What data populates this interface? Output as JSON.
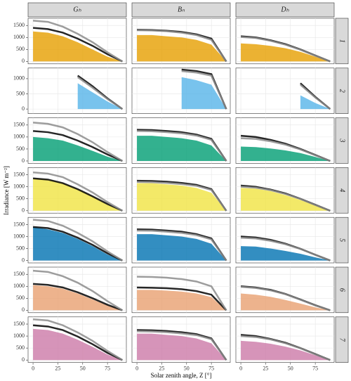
{
  "chart_data": {
    "type": "facet-scatter",
    "xlabel": "Solar zenith angle, Z [°]",
    "ylabel": "Irradiance [W m⁻²]",
    "columns": [
      "Gₕ",
      "Bₙ",
      "Dₕ"
    ],
    "x": [
      0,
      15,
      30,
      45,
      60,
      75,
      90
    ],
    "xlim": [
      -5,
      94
    ],
    "xticks": [
      0,
      25,
      50,
      75
    ],
    "limit_colors": [
      "#000000",
      "#8c8c8c"
    ],
    "rows": [
      {
        "label": "1",
        "color": "#E69F00",
        "ylim": [
          -100,
          1800
        ],
        "yticks": [
          0,
          500,
          1000,
          1500
        ],
        "panels": [
          {
            "cloud": [
              1250,
              1200,
              1050,
              800,
              500,
              200,
              0
            ],
            "limits": [
              [
                1400,
                1350,
                1200,
                950,
                650,
                300,
                0
              ],
              [
                1700,
                1650,
                1450,
                1150,
                800,
                380,
                0
              ]
            ]
          },
          {
            "cloud": [
              1100,
              1100,
              1050,
              1000,
              900,
              700,
              0
            ],
            "limits": [
              [
                1320,
                1310,
                1280,
                1230,
                1130,
                950,
                0
              ],
              [
                1300,
                1290,
                1260,
                1200,
                1100,
                900,
                0
              ]
            ]
          },
          {
            "cloud": [
              750,
              720,
              650,
              550,
              400,
              200,
              0
            ],
            "limits": [
              [
                1050,
                1000,
                880,
                720,
                500,
                250,
                0
              ],
              [
                1020,
                980,
                860,
                700,
                490,
                240,
                0
              ]
            ]
          }
        ]
      },
      {
        "label": "2",
        "color": "#56B4E9",
        "ylim": [
          -150,
          1350
        ],
        "yticks": [
          0,
          500,
          1000
        ],
        "panels": [
          {
            "cloud": [
              null,
              null,
              null,
              850,
              550,
              250,
              0
            ],
            "limits": [
              [
                null,
                null,
                null,
                1100,
                750,
                350,
                0
              ],
              [
                null,
                null,
                null,
                1050,
                700,
                330,
                0
              ]
            ]
          },
          {
            "cloud": [
              null,
              null,
              null,
              1050,
              950,
              800,
              0
            ],
            "limits": [
              [
                null,
                null,
                null,
                1300,
                1250,
                1150,
                0
              ],
              [
                null,
                null,
                null,
                1250,
                1200,
                1100,
                0
              ]
            ]
          },
          {
            "cloud": [
              null,
              null,
              null,
              null,
              450,
              200,
              0
            ],
            "limits": [
              [
                null,
                null,
                null,
                null,
                850,
                400,
                0
              ],
              [
                null,
                null,
                null,
                null,
                800,
                380,
                0
              ]
            ]
          }
        ]
      },
      {
        "label": "3",
        "color": "#009E73",
        "ylim": [
          -100,
          1800
        ],
        "yticks": [
          0,
          500,
          1000,
          1500
        ],
        "panels": [
          {
            "cloud": [
              1000,
              950,
              850,
              650,
              420,
              180,
              0
            ],
            "limits": [
              [
                1250,
                1200,
                1080,
                850,
                580,
                270,
                0
              ],
              [
                1600,
                1550,
                1400,
                1120,
                780,
                370,
                0
              ]
            ]
          },
          {
            "cloud": [
              1050,
              1050,
              1000,
              950,
              850,
              650,
              0
            ],
            "limits": [
              [
                1300,
                1290,
                1250,
                1200,
                1100,
                920,
                0
              ],
              [
                1250,
                1240,
                1200,
                1150,
                1060,
                880,
                0
              ]
            ]
          },
          {
            "cloud": [
              600,
              580,
              520,
              440,
              330,
              170,
              0
            ],
            "limits": [
              [
                1050,
                1000,
                880,
                720,
                500,
                250,
                0
              ],
              [
                950,
                920,
                820,
                680,
                480,
                240,
                0
              ]
            ]
          }
        ]
      },
      {
        "label": "4",
        "color": "#F0E442",
        "ylim": [
          -100,
          1800
        ],
        "yticks": [
          0,
          500,
          1000,
          1500
        ],
        "panels": [
          {
            "cloud": [
              1350,
              1300,
              1150,
              900,
              600,
              250,
              0
            ],
            "limits": [
              [
                1350,
                1300,
                1150,
                900,
                600,
                280,
                0
              ],
              [
                1600,
                1550,
                1400,
                1100,
                760,
                360,
                0
              ]
            ]
          },
          {
            "cloud": [
              1150,
              1150,
              1100,
              1050,
              950,
              750,
              0
            ],
            "limits": [
              [
                1250,
                1240,
                1210,
                1160,
                1080,
                900,
                0
              ],
              [
                1200,
                1190,
                1160,
                1110,
                1040,
                870,
                0
              ]
            ]
          },
          {
            "cloud": [
              950,
              920,
              820,
              650,
              450,
              220,
              0
            ],
            "limits": [
              [
                1050,
                1000,
                880,
                720,
                500,
                250,
                0
              ],
              [
                1000,
                960,
                860,
                700,
                490,
                240,
                0
              ]
            ]
          }
        ]
      },
      {
        "label": "5",
        "color": "#0072B2",
        "ylim": [
          -100,
          1800
        ],
        "yticks": [
          0,
          500,
          1000,
          1500
        ],
        "panels": [
          {
            "cloud": [
              1400,
              1300,
              1150,
              900,
              600,
              250,
              0
            ],
            "limits": [
              [
                1400,
                1350,
                1200,
                950,
                650,
                300,
                0
              ],
              [
                1700,
                1650,
                1450,
                1150,
                800,
                380,
                0
              ]
            ]
          },
          {
            "cloud": [
              1100,
              1100,
              1050,
              1000,
              900,
              700,
              0
            ],
            "limits": [
              [
                1300,
                1290,
                1250,
                1200,
                1100,
                920,
                0
              ],
              [
                1250,
                1240,
                1200,
                1150,
                1060,
                880,
                0
              ]
            ]
          },
          {
            "cloud": [
              600,
              580,
              500,
              400,
              280,
              130,
              0
            ],
            "limits": [
              [
                1000,
                960,
                860,
                700,
                490,
                240,
                0
              ],
              [
                950,
                920,
                820,
                680,
                480,
                240,
                0
              ]
            ]
          }
        ]
      },
      {
        "label": "6",
        "color": "#E8A070",
        "ylim": [
          -100,
          1800
        ],
        "yticks": [
          0,
          500,
          1000,
          1500
        ],
        "panels": [
          {
            "cloud": [
              1050,
              1000,
              900,
              700,
              450,
              200,
              0
            ],
            "limits": [
              [
                1100,
                1060,
                950,
                750,
                500,
                230,
                0
              ],
              [
                1650,
                1600,
                1420,
                1150,
                800,
                380,
                0
              ]
            ]
          },
          {
            "cloud": [
              850,
              850,
              820,
              780,
              700,
              550,
              0
            ],
            "limits": [
              [
                950,
                940,
                920,
                880,
                800,
                650,
                0
              ],
              [
                1400,
                1390,
                1360,
                1300,
                1200,
                1000,
                0
              ]
            ]
          },
          {
            "cloud": [
              700,
              650,
              560,
              430,
              280,
              120,
              0
            ],
            "limits": [
              [
                1000,
                950,
                850,
                680,
                450,
                210,
                0
              ],
              [
                980,
                930,
                830,
                670,
                440,
                200,
                0
              ]
            ]
          }
        ]
      },
      {
        "label": "7",
        "color": "#CC79A7",
        "ylim": [
          -100,
          1800
        ],
        "yticks": [
          0,
          500,
          1000,
          1500
        ],
        "panels": [
          {
            "cloud": [
              1300,
              1250,
              1100,
              850,
              550,
              230,
              0
            ],
            "limits": [
              [
                1450,
                1400,
                1250,
                980,
                660,
                300,
                0
              ],
              [
                1700,
                1650,
                1450,
                1150,
                800,
                380,
                0
              ]
            ]
          },
          {
            "cloud": [
              1100,
              1100,
              1050,
              1000,
              900,
              700,
              0
            ],
            "limits": [
              [
                1250,
                1240,
                1210,
                1160,
                1080,
                900,
                0
              ],
              [
                1200,
                1190,
                1160,
                1110,
                1040,
                870,
                0
              ]
            ]
          },
          {
            "cloud": [
              800,
              760,
              680,
              560,
              400,
              200,
              0
            ],
            "limits": [
              [
                1050,
                1000,
                880,
                720,
                500,
                250,
                0
              ],
              [
                1000,
                960,
                860,
                700,
                490,
                240,
                0
              ]
            ]
          }
        ]
      }
    ]
  }
}
